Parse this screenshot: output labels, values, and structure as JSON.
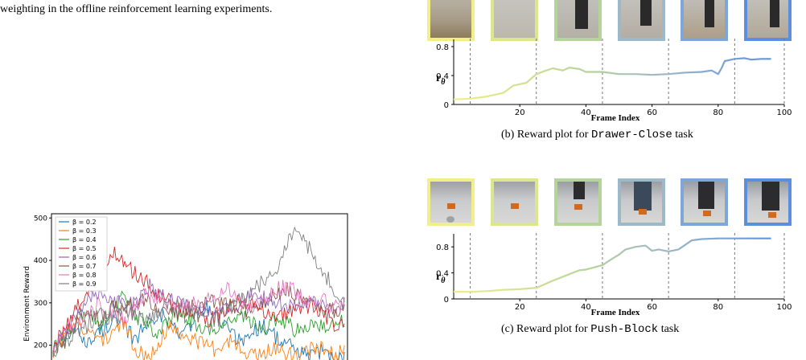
{
  "top_caption": "weighting in the offline reinforcement learning experiments.",
  "panel_b": {
    "caption_prefix": "(b) Reward plot for ",
    "caption_task": "Drawer-Close",
    "caption_suffix": " task",
    "ylabel": "r",
    "ylabel_sub": "θ",
    "xlabel": "Frame Index",
    "xticks": [
      "20",
      "40",
      "60",
      "80",
      "100"
    ],
    "yticks": [
      "0",
      "0.4",
      "0.8"
    ]
  },
  "panel_c": {
    "caption_prefix": "(c) Reward plot for ",
    "caption_task": "Push-Block",
    "caption_suffix": " task",
    "ylabel": "r",
    "ylabel_sub": "θ",
    "xlabel": "Frame Index",
    "xticks": [
      "20",
      "40",
      "60",
      "80",
      "100"
    ],
    "yticks": [
      "0",
      "0.4",
      "0.8"
    ]
  },
  "panel_a": {
    "ylabel": "Environment Reward",
    "yticks": [
      "200",
      "300",
      "400",
      "500"
    ],
    "legend": [
      "β = 0.2",
      "β = 0.3",
      "β = 0.4",
      "β = 0.5",
      "β = 0.6",
      "β = 0.7",
      "β = 0.8",
      "β = 0.9"
    ]
  },
  "colors": {
    "frame_borders": [
      "#f2ee8a",
      "#dbe68f",
      "#b5d49a",
      "#9bb9c9",
      "#7ea6d8",
      "#5b8de0"
    ],
    "series": [
      "#1f77b4",
      "#ff7f0e",
      "#2ca02c",
      "#d62728",
      "#9467bd",
      "#8c564b",
      "#e377c2",
      "#7f7f7f"
    ]
  },
  "chart_data": [
    {
      "type": "line",
      "title": "",
      "xlabel": "Frame Index",
      "ylabel": "rθ",
      "xlim": [
        0,
        100
      ],
      "ylim": [
        0,
        0.9
      ],
      "x": [
        0,
        5,
        10,
        15,
        18,
        20,
        22,
        25,
        28,
        30,
        33,
        35,
        38,
        40,
        45,
        50,
        55,
        60,
        65,
        70,
        75,
        78,
        80,
        81,
        82,
        85,
        88,
        90,
        93,
        96
      ],
      "values": [
        0.07,
        0.08,
        0.11,
        0.16,
        0.26,
        0.28,
        0.3,
        0.42,
        0.47,
        0.5,
        0.47,
        0.51,
        0.49,
        0.45,
        0.45,
        0.42,
        0.42,
        0.41,
        0.42,
        0.44,
        0.45,
        0.47,
        0.42,
        0.5,
        0.6,
        0.63,
        0.64,
        0.62,
        0.63,
        0.63
      ]
    },
    {
      "type": "line",
      "title": "",
      "xlabel": "Frame Index",
      "ylabel": "rθ",
      "xlim": [
        0,
        100
      ],
      "ylim": [
        0,
        1.0
      ],
      "x": [
        0,
        5,
        10,
        15,
        20,
        25,
        30,
        35,
        38,
        40,
        45,
        48,
        50,
        52,
        55,
        58,
        60,
        62,
        65,
        68,
        70,
        72,
        75,
        80,
        85,
        90,
        96
      ],
      "values": [
        0.11,
        0.11,
        0.12,
        0.14,
        0.15,
        0.17,
        0.28,
        0.38,
        0.44,
        0.45,
        0.52,
        0.62,
        0.68,
        0.76,
        0.8,
        0.82,
        0.74,
        0.76,
        0.73,
        0.76,
        0.83,
        0.9,
        0.92,
        0.93,
        0.93,
        0.93,
        0.93
      ]
    },
    {
      "type": "line",
      "title": "",
      "xlabel": "",
      "ylabel": "Environment Reward",
      "ylim": [
        150,
        510
      ],
      "series": [
        {
          "name": "β = 0.2",
          "values": [
            190,
            215,
            240,
            205,
            230,
            260,
            240,
            215,
            250,
            280,
            245,
            225,
            260,
            290,
            270,
            235,
            210,
            230,
            250,
            220,
            200,
            185,
            170,
            190,
            160,
            175
          ]
        },
        {
          "name": "β = 0.3",
          "values": [
            185,
            220,
            250,
            235,
            210,
            230,
            250,
            195,
            170,
            210,
            240,
            230,
            215,
            200,
            190,
            210,
            200,
            175,
            185,
            195,
            180,
            170,
            190,
            195,
            180,
            200
          ]
        },
        {
          "name": "β = 0.4",
          "values": [
            190,
            210,
            260,
            280,
            250,
            290,
            310,
            270,
            250,
            230,
            260,
            280,
            250,
            230,
            240,
            260,
            270,
            250,
            240,
            260,
            250,
            230,
            245,
            250,
            240,
            260
          ]
        },
        {
          "name": "β = 0.5",
          "values": [
            195,
            240,
            290,
            330,
            380,
            420,
            390,
            370,
            350,
            320,
            300,
            290,
            280,
            260,
            270,
            290,
            310,
            300,
            280,
            270,
            275,
            290,
            295,
            280,
            250,
            260
          ]
        },
        {
          "name": "β = 0.6",
          "values": [
            190,
            230,
            270,
            300,
            330,
            310,
            290,
            300,
            340,
            330,
            310,
            300,
            290,
            280,
            270,
            285,
            300,
            320,
            310,
            300,
            290,
            295,
            300,
            290,
            280,
            300
          ]
        },
        {
          "name": "β = 0.7",
          "values": [
            185,
            210,
            250,
            270,
            260,
            290,
            280,
            300,
            310,
            290,
            270,
            280,
            290,
            300,
            310,
            300,
            290,
            280,
            300,
            320,
            330,
            310,
            300,
            290,
            280,
            290
          ]
        },
        {
          "name": "β = 0.8",
          "values": [
            190,
            220,
            240,
            270,
            300,
            280,
            260,
            290,
            320,
            310,
            300,
            290,
            300,
            310,
            320,
            330,
            300,
            290,
            310,
            330,
            340,
            320,
            300,
            310,
            290,
            300
          ]
        },
        {
          "name": "β = 0.9",
          "values": [
            185,
            205,
            230,
            250,
            270,
            260,
            280,
            270,
            260,
            280,
            290,
            300,
            280,
            270,
            260,
            290,
            310,
            330,
            350,
            380,
            440,
            480,
            420,
            380,
            330,
            310
          ]
        }
      ]
    }
  ]
}
